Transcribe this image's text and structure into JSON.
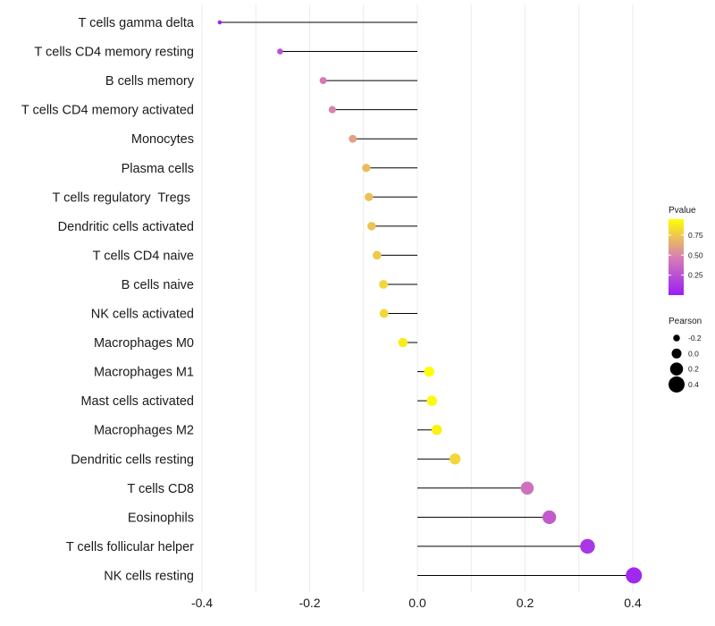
{
  "chart_data": {
    "type": "lollipop",
    "title": "",
    "xlabel": "",
    "ylabel": "",
    "xlim": [
      -0.4,
      0.4
    ],
    "x_ticks": [
      -0.4,
      -0.2,
      0.0,
      0.2,
      0.4
    ],
    "x_tick_labels": [
      "-0.4",
      "-0.2",
      "0.0",
      "0.2",
      "0.4"
    ],
    "grid": true,
    "points": [
      {
        "label": "T cells gamma delta",
        "pearson": -0.367,
        "pvalue": 0.02
      },
      {
        "label": "T cells CD4 memory resting",
        "pearson": -0.255,
        "pvalue": 0.25
      },
      {
        "label": "B cells memory",
        "pearson": -0.175,
        "pvalue": 0.45
      },
      {
        "label": "T cells CD4 memory activated",
        "pearson": -0.158,
        "pvalue": 0.5
      },
      {
        "label": "Monocytes",
        "pearson": -0.12,
        "pvalue": 0.6
      },
      {
        "label": "Plasma cells",
        "pearson": -0.095,
        "pvalue": 0.7
      },
      {
        "label": "T cells regulatory  Tregs ",
        "pearson": -0.09,
        "pvalue": 0.72
      },
      {
        "label": "Dendritic cells activated",
        "pearson": -0.085,
        "pvalue": 0.73
      },
      {
        "label": "T cells CD4 naive",
        "pearson": -0.075,
        "pvalue": 0.75
      },
      {
        "label": "B cells naive",
        "pearson": -0.063,
        "pvalue": 0.8
      },
      {
        "label": "NK cells activated",
        "pearson": -0.062,
        "pvalue": 0.8
      },
      {
        "label": "Macrophages M0",
        "pearson": -0.027,
        "pvalue": 0.88
      },
      {
        "label": "Macrophages M1",
        "pearson": 0.022,
        "pvalue": 0.95
      },
      {
        "label": "Mast cells activated",
        "pearson": 0.027,
        "pvalue": 0.93
      },
      {
        "label": "Macrophages M2",
        "pearson": 0.036,
        "pvalue": 0.9
      },
      {
        "label": "Dendritic cells resting",
        "pearson": 0.07,
        "pvalue": 0.8
      },
      {
        "label": "T cells CD8",
        "pearson": 0.204,
        "pvalue": 0.4
      },
      {
        "label": "Eosinophils",
        "pearson": 0.245,
        "pvalue": 0.3
      },
      {
        "label": "T cells follicular helper",
        "pearson": 0.316,
        "pvalue": 0.12
      },
      {
        "label": "NK cells resting",
        "pearson": 0.402,
        "pvalue": 0.05
      }
    ],
    "legend_color": {
      "title": "Pvalue",
      "min": 0.0,
      "max": 0.95,
      "breaks": [
        0.75,
        0.5,
        0.25
      ],
      "break_labels": [
        "0.75",
        "0.50",
        "0.25"
      ],
      "low_color": "#9b1ef5",
      "mid_color": "#d77fb4",
      "high_color": "#ffff00"
    },
    "legend_size": {
      "title": "Pearson",
      "values": [
        -0.2,
        0.0,
        0.2,
        0.4
      ],
      "labels": [
        "-0.2",
        "0.0",
        "0.2",
        "0.4"
      ]
    }
  }
}
